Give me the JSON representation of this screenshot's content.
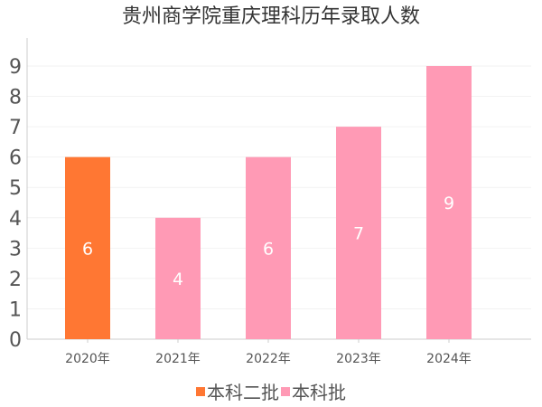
{
  "chart_data": {
    "type": "bar",
    "title": "贵州商学院重庆理科历年录取人数",
    "categories": [
      "2020年",
      "2021年",
      "2022年",
      "2023年",
      "2024年"
    ],
    "values": [
      6,
      4,
      6,
      7,
      9
    ],
    "bar_series": [
      "本科二批",
      "本科批",
      "本科批",
      "本科批",
      "本科批"
    ],
    "legend": [
      {
        "name": "本科二批",
        "color": "#ff7733"
      },
      {
        "name": "本科批",
        "color": "#ff9ab5"
      }
    ],
    "yticks": [
      "0",
      "1",
      "2",
      "3",
      "4",
      "5",
      "6",
      "7",
      "8",
      "9"
    ],
    "ylim": [
      0,
      9
    ],
    "xlabel": "",
    "ylabel": "",
    "grid": true,
    "legend_position": "bottom"
  }
}
